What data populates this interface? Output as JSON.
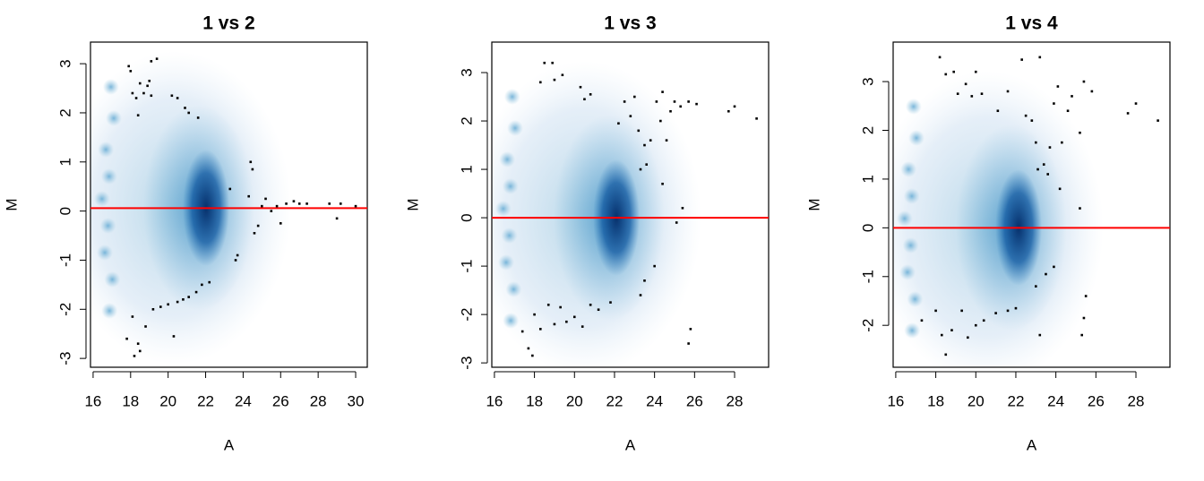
{
  "chart_data": [
    {
      "type": "scatter",
      "title": "1 vs 2",
      "xlabel": "A",
      "ylabel": "M",
      "xlim": [
        15.86,
        30.62
      ],
      "ylim": [
        -3.18,
        3.44
      ],
      "xticks": [
        16,
        18,
        20,
        22,
        24,
        26,
        28,
        30
      ],
      "yticks": [
        -3,
        -2,
        -1,
        0,
        1,
        2,
        3
      ],
      "point_color": "#000000",
      "hline": 0.06,
      "hline_color": "#ff0000",
      "x": [
        17.9,
        18.0,
        18.1,
        18.3,
        18.4,
        18.5,
        18.7,
        18.9,
        19.0,
        19.1,
        19.4,
        19.1,
        20.2,
        20.5,
        20.9,
        21.1,
        21.6,
        17.8,
        18.1,
        18.2,
        18.4,
        18.5,
        18.8,
        19.2,
        19.6,
        20.0,
        20.3,
        20.5,
        20.8,
        21.1,
        21.5,
        21.8,
        22.2,
        23.6,
        23.7,
        23.3,
        24.4,
        24.5,
        24.3,
        24.6,
        24.8,
        25.0,
        25.2,
        25.5,
        25.8,
        26.0,
        26.3,
        26.7,
        27.0,
        27.4,
        28.6,
        29.0,
        29.2,
        30.0
      ],
      "y": [
        2.95,
        2.85,
        2.4,
        2.3,
        1.95,
        2.6,
        2.4,
        2.55,
        2.65,
        3.05,
        3.1,
        2.35,
        2.35,
        2.3,
        2.1,
        2.0,
        1.9,
        -2.6,
        -2.15,
        -2.95,
        -2.7,
        -2.85,
        -2.35,
        -2.0,
        -1.95,
        -1.9,
        -2.55,
        -1.85,
        -1.8,
        -1.75,
        -1.65,
        -1.5,
        -1.45,
        -1.0,
        -0.9,
        0.45,
        1.0,
        0.85,
        0.3,
        -0.45,
        -0.3,
        0.1,
        0.25,
        0.0,
        0.1,
        -0.25,
        0.15,
        0.2,
        0.15,
        0.15,
        0.15,
        -0.15,
        0.15,
        0.1
      ]
    },
    {
      "type": "scatter",
      "title": "1 vs 3",
      "xlabel": "A",
      "ylabel": "M",
      "xlim": [
        15.87,
        29.7
      ],
      "ylim": [
        -3.09,
        3.63
      ],
      "xticks": [
        16,
        18,
        20,
        22,
        24,
        26,
        28
      ],
      "yticks": [
        -3,
        -2,
        -1,
        0,
        1,
        2,
        3
      ],
      "point_color": "#000000",
      "hline": 0,
      "hline_color": "#ff0000",
      "x": [
        18.3,
        18.5,
        18.9,
        19.0,
        19.4,
        20.3,
        20.5,
        20.8,
        22.2,
        22.5,
        22.8,
        23.0,
        23.2,
        23.5,
        23.3,
        23.6,
        23.8,
        24.1,
        24.3,
        24.4,
        24.6,
        24.8,
        25.0,
        25.3,
        25.7,
        26.1,
        27.7,
        28.0,
        29.1,
        24.4,
        25.4,
        25.1,
        17.4,
        17.7,
        17.9,
        18.0,
        18.3,
        18.7,
        19.0,
        19.3,
        19.6,
        20.0,
        20.4,
        20.8,
        21.2,
        21.8,
        23.3,
        23.5,
        24.0,
        25.8,
        25.7
      ],
      "y": [
        2.8,
        3.2,
        3.2,
        2.85,
        2.95,
        2.7,
        2.45,
        2.55,
        1.95,
        2.4,
        2.1,
        2.5,
        1.8,
        1.5,
        1.0,
        1.1,
        1.6,
        2.4,
        2.0,
        2.6,
        1.6,
        2.2,
        2.4,
        2.3,
        2.4,
        2.35,
        2.2,
        2.3,
        2.05,
        0.7,
        0.2,
        -0.1,
        -2.35,
        -2.7,
        -2.85,
        -2.0,
        -2.3,
        -1.8,
        -2.2,
        -1.85,
        -2.15,
        -2.05,
        -2.25,
        -1.8,
        -1.9,
        -1.75,
        -1.6,
        -1.3,
        -1.0,
        -2.3,
        -2.6
      ]
    },
    {
      "type": "scatter",
      "title": "1 vs 4",
      "xlabel": "A",
      "ylabel": "M",
      "xlim": [
        15.87,
        29.7
      ],
      "ylim": [
        -2.86,
        3.81
      ],
      "xticks": [
        16,
        18,
        20,
        22,
        24,
        26,
        28
      ],
      "yticks": [
        -2,
        -1,
        0,
        1,
        2,
        3
      ],
      "point_color": "#000000",
      "hline": 0,
      "hline_color": "#ff0000",
      "x": [
        18.2,
        18.5,
        18.9,
        19.1,
        19.5,
        19.8,
        20.0,
        20.3,
        21.1,
        21.6,
        22.3,
        22.5,
        22.8,
        23.0,
        23.2,
        23.1,
        23.4,
        23.6,
        23.7,
        23.9,
        24.1,
        24.3,
        24.6,
        24.8,
        25.2,
        25.4,
        25.8,
        27.6,
        28.0,
        29.1,
        24.2,
        25.2,
        17.3,
        18.0,
        18.3,
        18.5,
        18.8,
        19.3,
        19.6,
        20.0,
        20.4,
        21.0,
        21.6,
        22.0,
        23.0,
        23.2,
        23.5,
        23.9,
        25.5,
        25.4,
        25.3
      ],
      "y": [
        3.5,
        3.15,
        3.2,
        2.75,
        2.95,
        2.7,
        3.2,
        2.75,
        2.4,
        2.8,
        3.45,
        2.3,
        2.2,
        1.75,
        3.5,
        1.2,
        1.3,
        1.1,
        1.65,
        2.55,
        2.9,
        1.75,
        2.4,
        2.7,
        1.95,
        3.0,
        2.8,
        2.35,
        2.55,
        2.2,
        0.8,
        0.4,
        -1.9,
        -1.7,
        -2.2,
        -2.6,
        -2.1,
        -1.7,
        -2.25,
        -2.0,
        -1.9,
        -1.75,
        -1.7,
        -1.65,
        -1.2,
        -2.2,
        -0.95,
        -0.8,
        -1.4,
        -1.85,
        -2.2
      ]
    }
  ]
}
